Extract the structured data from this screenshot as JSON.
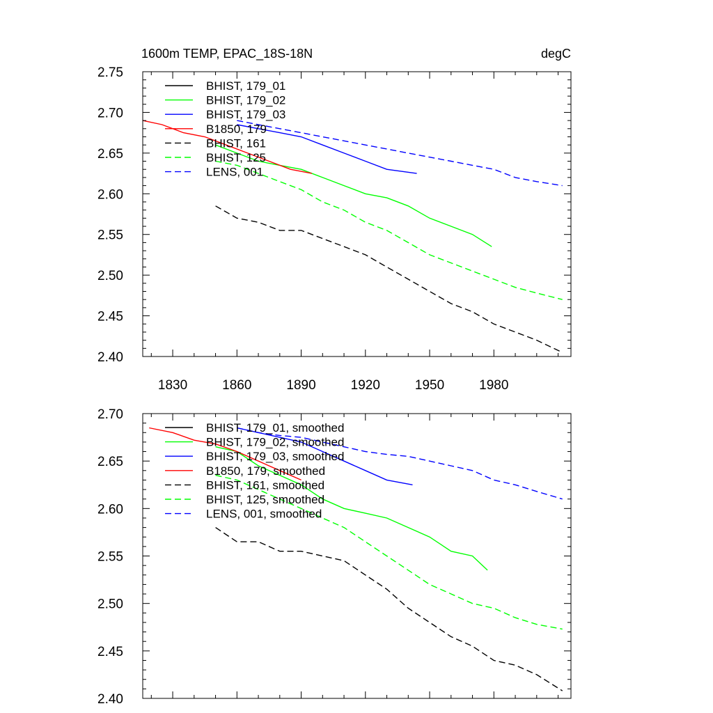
{
  "chart_data": [
    {
      "type": "line",
      "title": "1600m TEMP, EPAC_18S-18N",
      "units": "degC",
      "xlim": [
        1816,
        2016
      ],
      "ylim": [
        2.4,
        2.75
      ],
      "x_ticks": [
        1830,
        1860,
        1890,
        1920,
        1950,
        1980
      ],
      "y_ticks": [
        "2.40",
        "2.45",
        "2.50",
        "2.55",
        "2.60",
        "2.65",
        "2.70",
        "2.75"
      ],
      "legend_position": "top-left",
      "series": [
        {
          "name": "BHIST, 179_01",
          "color": "#000000",
          "dash": "solid",
          "x": [],
          "y": []
        },
        {
          "name": "BHIST, 179_02",
          "color": "#00ff00",
          "dash": "solid",
          "x": [
            1850,
            1860,
            1870,
            1880,
            1890,
            1900,
            1910,
            1920,
            1930,
            1940,
            1950,
            1960,
            1970,
            1979
          ],
          "y": [
            2.66,
            2.65,
            2.64,
            2.635,
            2.63,
            2.62,
            2.61,
            2.6,
            2.595,
            2.585,
            2.57,
            2.56,
            2.55,
            2.535
          ]
        },
        {
          "name": "BHIST, 179_03",
          "color": "#0000ff",
          "dash": "solid",
          "x": [
            1860,
            1870,
            1880,
            1890,
            1900,
            1910,
            1920,
            1930,
            1944
          ],
          "y": [
            2.685,
            2.68,
            2.675,
            2.67,
            2.66,
            2.65,
            2.64,
            2.63,
            2.625
          ]
        },
        {
          "name": "B1850, 179",
          "color": "#ff0000",
          "dash": "solid",
          "x": [
            1816,
            1825,
            1835,
            1845,
            1855,
            1865,
            1875,
            1885,
            1895
          ],
          "y": [
            2.69,
            2.685,
            2.675,
            2.67,
            2.66,
            2.65,
            2.64,
            2.63,
            2.625
          ]
        },
        {
          "name": "BHIST, 161",
          "color": "#000000",
          "dash": "dashed",
          "x": [
            1850,
            1860,
            1870,
            1880,
            1890,
            1900,
            1910,
            1920,
            1930,
            1940,
            1950,
            1960,
            1970,
            1980,
            1990,
            2000,
            2012
          ],
          "y": [
            2.585,
            2.57,
            2.565,
            2.555,
            2.555,
            2.545,
            2.535,
            2.525,
            2.51,
            2.495,
            2.48,
            2.465,
            2.455,
            2.44,
            2.43,
            2.42,
            2.405
          ]
        },
        {
          "name": "BHIST, 125",
          "color": "#00ff00",
          "dash": "dashed",
          "x": [
            1850,
            1860,
            1870,
            1880,
            1890,
            1900,
            1910,
            1920,
            1930,
            1940,
            1950,
            1960,
            1970,
            1980,
            1990,
            2000,
            2012
          ],
          "y": [
            2.64,
            2.635,
            2.625,
            2.615,
            2.605,
            2.59,
            2.58,
            2.565,
            2.555,
            2.54,
            2.525,
            2.515,
            2.505,
            2.495,
            2.485,
            2.478,
            2.47
          ]
        },
        {
          "name": "LENS, 001",
          "color": "#0000ff",
          "dash": "dashed",
          "x": [
            1860,
            1870,
            1880,
            1890,
            1900,
            1910,
            1920,
            1930,
            1940,
            1950,
            1960,
            1970,
            1980,
            1990,
            2000,
            2012
          ],
          "y": [
            2.69,
            2.685,
            2.68,
            2.675,
            2.67,
            2.665,
            2.66,
            2.655,
            2.65,
            2.645,
            2.64,
            2.635,
            2.63,
            2.62,
            2.615,
            2.61
          ]
        }
      ]
    },
    {
      "type": "line",
      "xlim": [
        1816,
        2016
      ],
      "ylim": [
        2.4,
        2.7
      ],
      "y_ticks": [
        "2.40",
        "2.45",
        "2.50",
        "2.55",
        "2.60",
        "2.65",
        "2.70"
      ],
      "legend_position": "top-left",
      "series": [
        {
          "name": "BHIST, 179_01, smoothed",
          "color": "#000000",
          "dash": "solid",
          "x": [],
          "y": []
        },
        {
          "name": "BHIST, 179_02, smoothed",
          "color": "#00ff00",
          "dash": "solid",
          "x": [
            1850,
            1860,
            1870,
            1880,
            1890,
            1900,
            1910,
            1920,
            1930,
            1940,
            1950,
            1960,
            1970,
            1977
          ],
          "y": [
            2.665,
            2.66,
            2.645,
            2.635,
            2.625,
            2.61,
            2.6,
            2.595,
            2.59,
            2.58,
            2.57,
            2.555,
            2.55,
            2.535
          ]
        },
        {
          "name": "BHIST, 179_03, smoothed",
          "color": "#0000ff",
          "dash": "solid",
          "x": [
            1860,
            1870,
            1880,
            1890,
            1900,
            1910,
            1920,
            1930,
            1942
          ],
          "y": [
            2.685,
            2.68,
            2.675,
            2.67,
            2.66,
            2.65,
            2.64,
            2.63,
            2.625
          ]
        },
        {
          "name": "B1850, 179, smoothed",
          "color": "#ff0000",
          "dash": "solid",
          "x": [
            1819,
            1830,
            1840,
            1850,
            1860,
            1870,
            1880,
            1890
          ],
          "y": [
            2.685,
            2.68,
            2.672,
            2.668,
            2.66,
            2.65,
            2.64,
            2.63
          ]
        },
        {
          "name": "BHIST, 161, smoothed",
          "color": "#000000",
          "dash": "dashed",
          "x": [
            1850,
            1860,
            1870,
            1880,
            1890,
            1900,
            1910,
            1920,
            1930,
            1940,
            1950,
            1960,
            1970,
            1980,
            1990,
            2000,
            2012
          ],
          "y": [
            2.58,
            2.565,
            2.565,
            2.555,
            2.555,
            2.55,
            2.545,
            2.53,
            2.515,
            2.495,
            2.48,
            2.465,
            2.455,
            2.44,
            2.435,
            2.425,
            2.408
          ]
        },
        {
          "name": "BHIST, 125, smoothed",
          "color": "#00ff00",
          "dash": "dashed",
          "x": [
            1850,
            1860,
            1870,
            1880,
            1890,
            1900,
            1910,
            1920,
            1930,
            1940,
            1950,
            1960,
            1970,
            1980,
            1990,
            2000,
            2012
          ],
          "y": [
            2.635,
            2.63,
            2.62,
            2.61,
            2.6,
            2.59,
            2.58,
            2.565,
            2.55,
            2.535,
            2.52,
            2.51,
            2.5,
            2.495,
            2.485,
            2.478,
            2.473
          ]
        },
        {
          "name": "LENS, 001, smoothed",
          "color": "#0000ff",
          "dash": "dashed",
          "x": [
            1860,
            1870,
            1880,
            1890,
            1900,
            1910,
            1920,
            1930,
            1940,
            1950,
            1960,
            1970,
            1980,
            1990,
            2000,
            2012
          ],
          "y": [
            2.685,
            2.68,
            2.677,
            2.675,
            2.67,
            2.665,
            2.66,
            2.657,
            2.655,
            2.65,
            2.645,
            2.64,
            2.63,
            2.625,
            2.618,
            2.61
          ]
        }
      ]
    }
  ]
}
